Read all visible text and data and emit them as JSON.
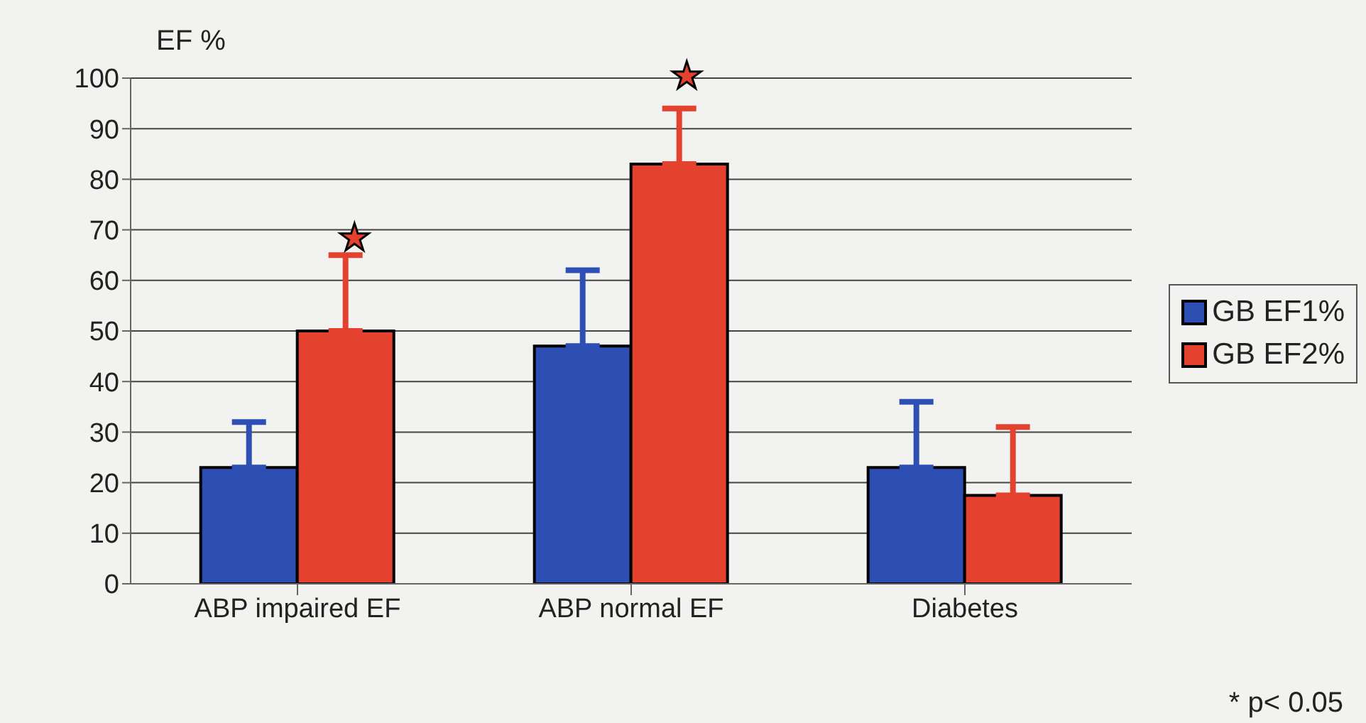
{
  "chart_data": {
    "type": "bar",
    "ylabel": "EF %",
    "categories": [
      "ABP impaired EF",
      "ABP normal EF",
      "Diabetes"
    ],
    "series": [
      {
        "name": "GB EF1%",
        "color": "#2d4fb4",
        "values": [
          23,
          47,
          23
        ],
        "errors": [
          [
            23,
            32
          ],
          [
            47,
            62
          ],
          [
            23,
            36
          ]
        ]
      },
      {
        "name": "GB EF2%",
        "color": "#e5412f",
        "values": [
          50,
          83,
          17.5
        ],
        "errors": [
          [
            50,
            65
          ],
          [
            83,
            94
          ],
          [
            17.5,
            31
          ]
        ]
      }
    ],
    "ylim": [
      0,
      100
    ],
    "yticks": [
      0,
      10,
      20,
      30,
      40,
      50,
      60,
      70,
      80,
      90,
      100
    ],
    "grid": "y",
    "legend": "right",
    "annotations": [
      "★",
      "★",
      "* p< 0.05"
    ]
  }
}
